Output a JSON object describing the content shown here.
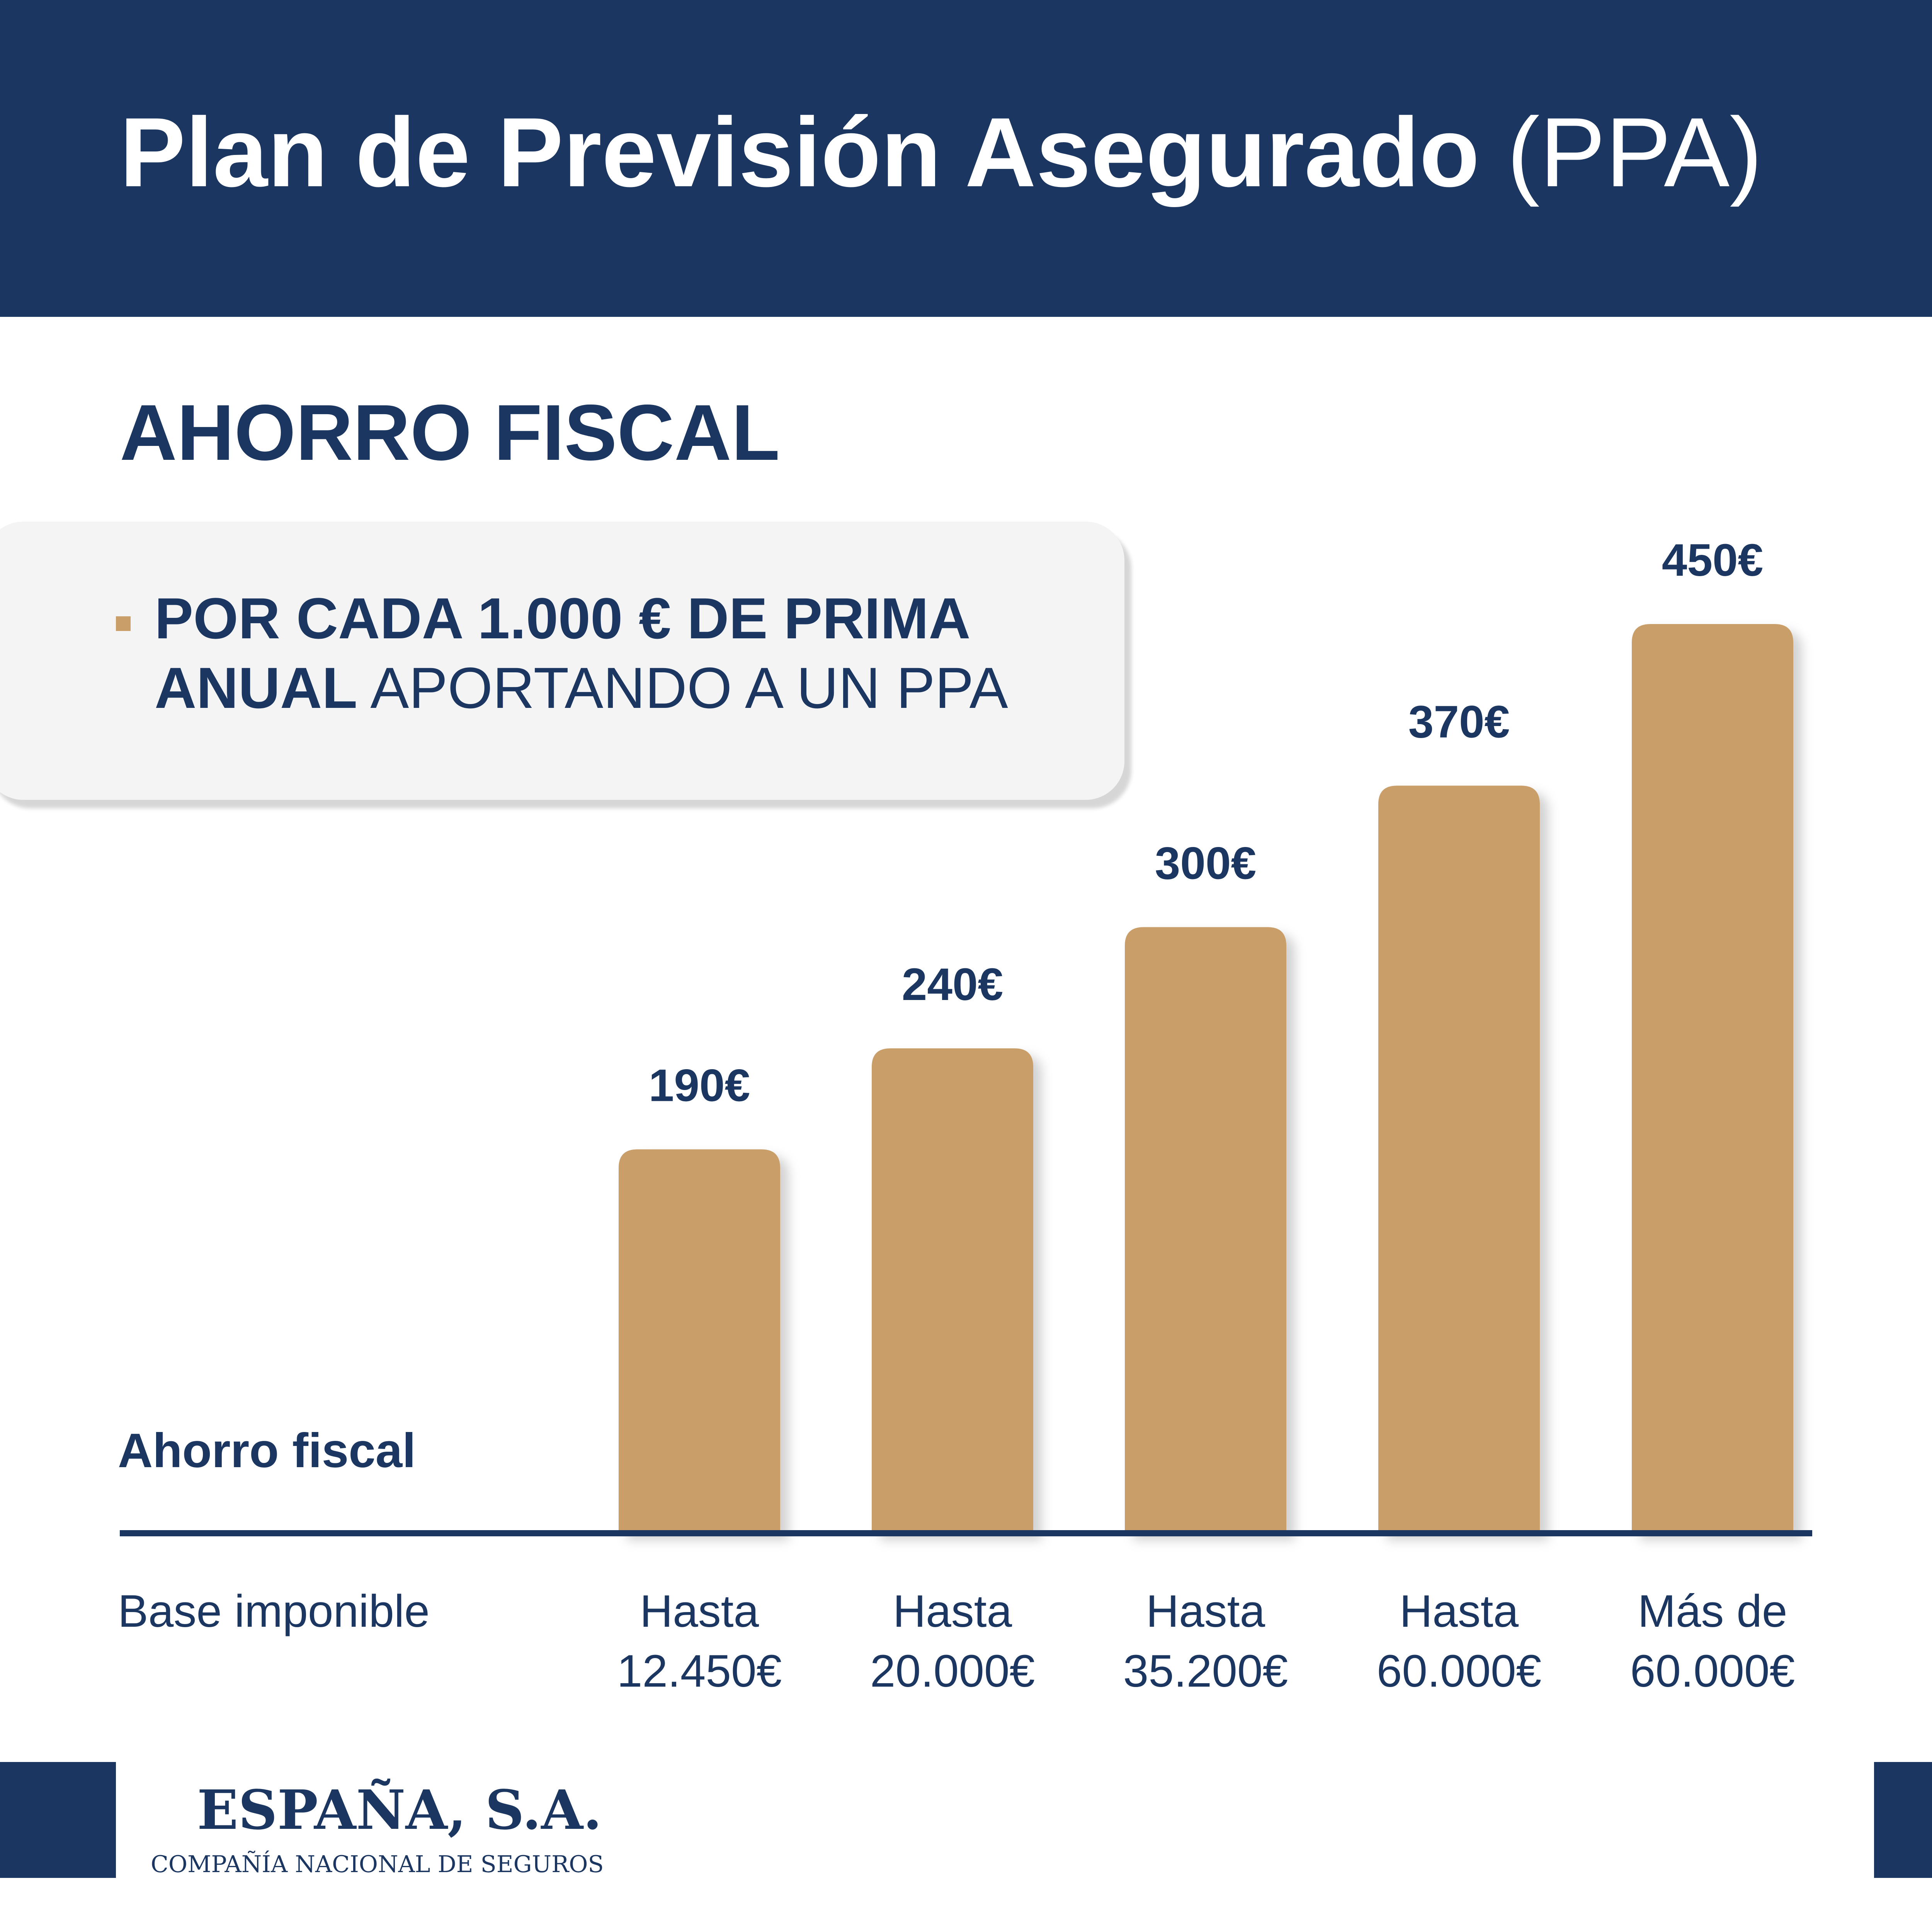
{
  "header": {
    "title_main": "Plan de Previsión Asegurado",
    "title_suffix": "(PPA)"
  },
  "section_title": "AHORRO FISCAL",
  "callout": {
    "bold_line1": "POR CADA 1.000 € DE PRIMA",
    "bold_line2": "ANUAL",
    "light_text": "APORTANDO A UN PPA"
  },
  "chart_data": {
    "type": "bar",
    "categories": [
      [
        "Hasta",
        "12.450€"
      ],
      [
        "Hasta",
        "20.000€"
      ],
      [
        "Hasta",
        "35.200€"
      ],
      [
        "Hasta",
        "60.000€"
      ],
      [
        "Más de",
        "60.000€"
      ]
    ],
    "values": [
      190,
      240,
      300,
      370,
      450
    ],
    "value_labels": [
      "190€",
      "240€",
      "300€",
      "370€",
      "450€"
    ],
    "ylabel": "Ahorro fiscal",
    "xlabel": "Base imponible",
    "ylim": [
      0,
      450
    ],
    "grid": false,
    "bar_color": "#c99e69",
    "text_color": "#1b3660"
  },
  "footer": {
    "company_name": "ESPAÑA, S.A.",
    "company_subtitle": "COMPAÑÍA NACIONAL DE SEGUROS"
  },
  "colors": {
    "navy": "#1b3660",
    "gold": "#c99e69"
  }
}
